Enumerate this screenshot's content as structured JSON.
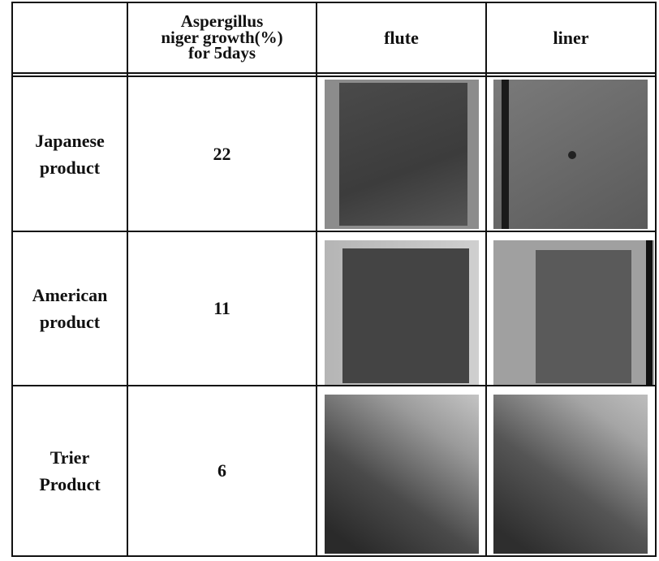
{
  "table": {
    "columns": [
      [
        "Aspergillus",
        "niger growth(%)",
        "for 5days"
      ],
      "flute",
      "liner"
    ],
    "rows": [
      {
        "name": [
          "Japanese",
          "product"
        ],
        "growth": 22
      },
      {
        "name": [
          "American",
          "product"
        ],
        "growth": 11
      },
      {
        "name": [
          "Trier",
          "Product"
        ],
        "growth": 6
      }
    ]
  }
}
